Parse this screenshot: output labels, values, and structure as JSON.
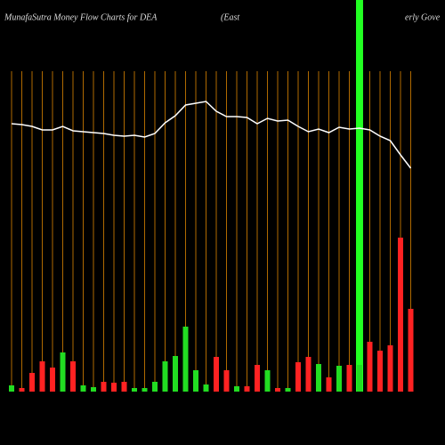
{
  "chart_data": {
    "type": "bar",
    "title": "MunafaSutra  Money Flow  Charts for DEA",
    "subtitle": [
      "(East",
      "erly Gove"
    ],
    "ylim": [
      0,
      360
    ],
    "series": [
      {
        "type": "bar",
        "values": [
          7,
          4,
          21,
          34,
          27,
          44,
          34,
          7,
          5,
          11,
          10,
          11,
          4,
          4,
          11,
          34,
          40,
          73,
          24,
          8,
          39,
          24,
          6,
          6,
          30,
          24,
          4,
          4,
          33,
          39,
          31,
          16,
          29,
          30,
          30,
          56,
          46,
          52,
          173,
          93
        ],
        "colors": [
          "#22dd22",
          "#ff2222",
          "#ff2222",
          "#ff2222",
          "#ff2222",
          "#22dd22",
          "#ff2222",
          "#22dd22",
          "#22dd22",
          "#ff2222",
          "#ff2222",
          "#ff2222",
          "#22dd22",
          "#22dd22",
          "#22dd22",
          "#22dd22",
          "#22dd22",
          "#22dd22",
          "#22dd22",
          "#22dd22",
          "#ff2222",
          "#ff2222",
          "#22dd22",
          "#ff2222",
          "#ff2222",
          "#22dd22",
          "#ff2222",
          "#22dd22",
          "#ff2222",
          "#ff2222",
          "#22dd22",
          "#ff2222",
          "#22dd22",
          "#ff2222",
          "#22dd22",
          "#ff2222",
          "#ff2222",
          "#ff2222",
          "#ff2222",
          "#ff2222"
        ]
      },
      {
        "type": "line",
        "color": "#ffffff",
        "values": [
          301,
          300,
          298,
          294,
          294,
          298,
          293,
          292,
          291,
          290,
          288,
          287,
          288,
          286,
          290,
          302,
          310,
          322,
          324,
          326,
          315,
          309,
          309,
          308,
          301,
          307,
          304,
          305,
          298,
          292,
          295,
          291,
          297,
          295,
          296,
          294,
          287,
          282,
          266,
          251
        ]
      }
    ],
    "gridline_color": "#b06a00",
    "highlight_index": 34,
    "highlight_color": "#22ff22"
  }
}
